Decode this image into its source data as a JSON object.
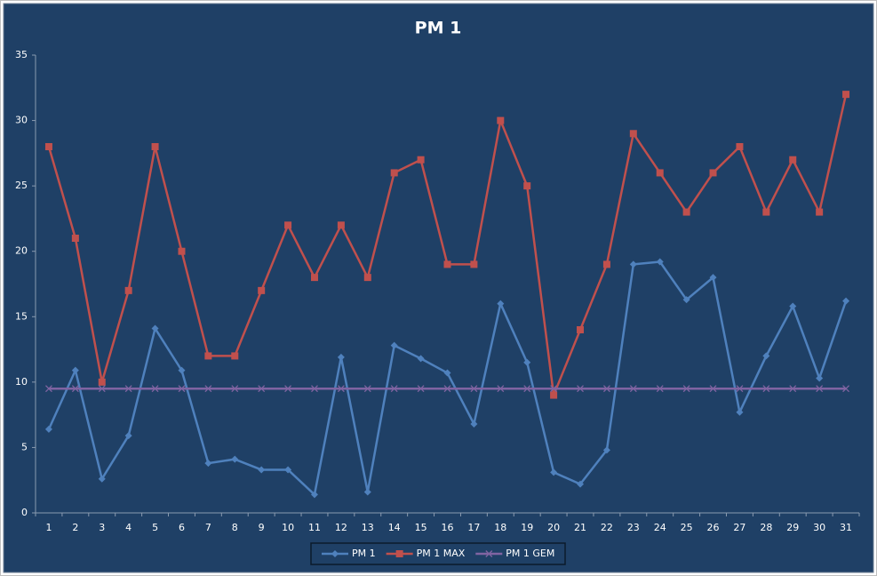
{
  "chart_data": {
    "type": "line",
    "title": "PM 1",
    "categories": [
      "1",
      "2",
      "3",
      "4",
      "5",
      "6",
      "7",
      "8",
      "9",
      "10",
      "11",
      "12",
      "13",
      "14",
      "15",
      "16",
      "17",
      "18",
      "19",
      "20",
      "21",
      "22",
      "23",
      "24",
      "25",
      "26",
      "27",
      "28",
      "29",
      "30",
      "31"
    ],
    "series": [
      {
        "name": "PM 1",
        "color": "#4f81bd",
        "marker": "diamond",
        "values": [
          6.4,
          10.9,
          2.6,
          5.9,
          14.1,
          10.9,
          3.8,
          4.1,
          3.3,
          3.3,
          1.4,
          11.9,
          1.6,
          12.8,
          11.8,
          10.7,
          6.8,
          16.0,
          11.5,
          3.1,
          2.2,
          4.8,
          19.0,
          19.2,
          16.3,
          18.0,
          7.7,
          12.0,
          15.8,
          10.3,
          16.2
        ]
      },
      {
        "name": "PM 1 MAX",
        "color": "#c0504d",
        "marker": "square",
        "values": [
          28,
          21,
          10,
          17,
          28,
          20,
          12,
          12,
          17,
          22,
          18,
          22,
          18,
          26,
          27,
          19,
          19,
          30,
          25,
          9,
          14,
          19,
          29,
          26,
          23,
          26,
          28,
          23,
          27,
          23,
          32
        ]
      },
      {
        "name": "PM 1 GEM",
        "color": "#8064a2",
        "marker": "x",
        "values": [
          9.5,
          9.5,
          9.5,
          9.5,
          9.5,
          9.5,
          9.5,
          9.5,
          9.5,
          9.5,
          9.5,
          9.5,
          9.5,
          9.5,
          9.5,
          9.5,
          9.5,
          9.5,
          9.5,
          9.5,
          9.5,
          9.5,
          9.5,
          9.5,
          9.5,
          9.5,
          9.5,
          9.5,
          9.5,
          9.5,
          9.5
        ]
      }
    ],
    "ylim": [
      0,
      35
    ],
    "yticks": [
      0,
      5,
      10,
      15,
      20,
      25,
      30,
      35
    ],
    "grid": false,
    "legend": "bottom"
  }
}
